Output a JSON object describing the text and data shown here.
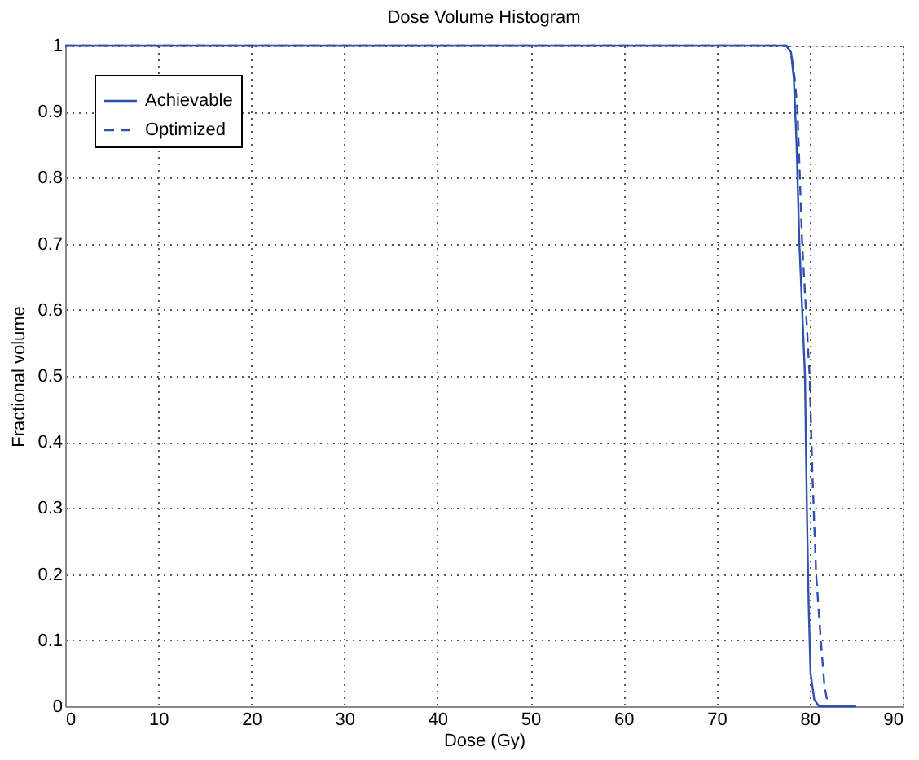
{
  "chart_data": {
    "type": "line",
    "title": "Dose Volume Histogram",
    "xlabel": "Dose (Gy)",
    "ylabel": "Fractional volume",
    "xlim": [
      0,
      90
    ],
    "ylim": [
      0,
      1
    ],
    "xticks": [
      0,
      10,
      20,
      30,
      40,
      50,
      60,
      70,
      80,
      90
    ],
    "yticks": [
      0,
      0.1,
      0.2,
      0.3,
      0.4,
      0.5,
      0.6,
      0.7,
      0.8,
      0.9,
      1
    ],
    "grid": true,
    "legend": "top left",
    "marker": "none",
    "series": [
      {
        "name": "Achievable",
        "color": "#3050b0",
        "line_style": "solid",
        "x": [
          0,
          77.5,
          78,
          78.3,
          78.6,
          78.9,
          79.2,
          79.5,
          79.7,
          79.9,
          80.1,
          80.5,
          81,
          85
        ],
        "values": [
          1,
          1,
          0.99,
          0.95,
          0.85,
          0.7,
          0.6,
          0.5,
          0.3,
          0.15,
          0.05,
          0.01,
          0,
          0
        ]
      },
      {
        "name": "Optimized",
        "color": "#3050b0",
        "line_style": "dashed",
        "x": [
          0,
          77.5,
          78,
          78.4,
          78.7,
          79.2,
          79.6,
          80,
          80.3,
          80.7,
          81.2,
          81.6,
          82,
          85
        ],
        "values": [
          1,
          1,
          0.99,
          0.95,
          0.9,
          0.7,
          0.6,
          0.5,
          0.35,
          0.2,
          0.1,
          0.03,
          0,
          0
        ]
      }
    ]
  }
}
